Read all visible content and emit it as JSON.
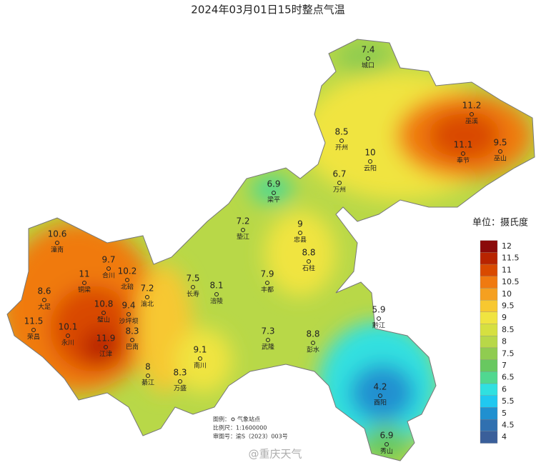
{
  "title": "2024年03月01日15时整点气温",
  "stations": [
    {
      "name": "城口",
      "value": 7.4
    },
    {
      "name": "巫溪",
      "value": 11.2
    },
    {
      "name": "开州",
      "value": 8.5
    },
    {
      "name": "云阳",
      "value": 10
    },
    {
      "name": "奉节",
      "value": 11.1
    },
    {
      "name": "巫山",
      "value": 9.5
    },
    {
      "name": "万州",
      "value": 6.7
    },
    {
      "name": "梁平",
      "value": 6.9
    },
    {
      "name": "垫江",
      "value": 7.2
    },
    {
      "name": "忠县",
      "value": 9
    },
    {
      "name": "潼南",
      "value": 10.6
    },
    {
      "name": "石柱",
      "value": 8.8
    },
    {
      "name": "合川",
      "value": 9.7
    },
    {
      "name": "北碚",
      "value": 10.2
    },
    {
      "name": "铜梁",
      "value": 11
    },
    {
      "name": "渝北",
      "value": 7.2
    },
    {
      "name": "长寿",
      "value": 7.5
    },
    {
      "name": "丰都",
      "value": 7.9
    },
    {
      "name": "涪陵",
      "value": 8.1
    },
    {
      "name": "大足",
      "value": 8.6
    },
    {
      "name": "璧山",
      "value": 10.8
    },
    {
      "name": "沙坪坝",
      "value": 9.4
    },
    {
      "name": "永川",
      "value": 10.1
    },
    {
      "name": "荣昌",
      "value": 11.5
    },
    {
      "name": "巴南",
      "value": 8.3
    },
    {
      "name": "江津",
      "value": 11.9
    },
    {
      "name": "武隆",
      "value": 7.3
    },
    {
      "name": "彭水",
      "value": 8.8
    },
    {
      "name": "黔江",
      "value": 5.9
    },
    {
      "name": "南川",
      "value": 9.1
    },
    {
      "name": "綦江",
      "value": 8
    },
    {
      "name": "万盛",
      "value": 8.3
    },
    {
      "name": "酉阳",
      "value": 4.2
    },
    {
      "name": "秀山",
      "value": 6.9
    }
  ],
  "legend": {
    "title": "单位：摄氏度",
    "levels": [
      12,
      11.5,
      11,
      10.5,
      10,
      9.5,
      9,
      8.5,
      8,
      7.5,
      7,
      6.5,
      6,
      5.5,
      5,
      4.5,
      4
    ],
    "colors": [
      "#8b0a0a",
      "#b82400",
      "#d94a00",
      "#f07a10",
      "#f5a020",
      "#f7c830",
      "#f0e440",
      "#d6e040",
      "#b8d848",
      "#90cc50",
      "#68c860",
      "#50d890",
      "#30e0e0",
      "#20c8f0",
      "#2090d0",
      "#3070b0",
      "#3a5f9a"
    ]
  },
  "footer": {
    "legend_label": "图例：",
    "legend_item": "气象站点",
    "scale": "比例尺：1:1600000",
    "approval": "审图号：渝S（2023）003号"
  },
  "watermark": "@重庆天气"
}
